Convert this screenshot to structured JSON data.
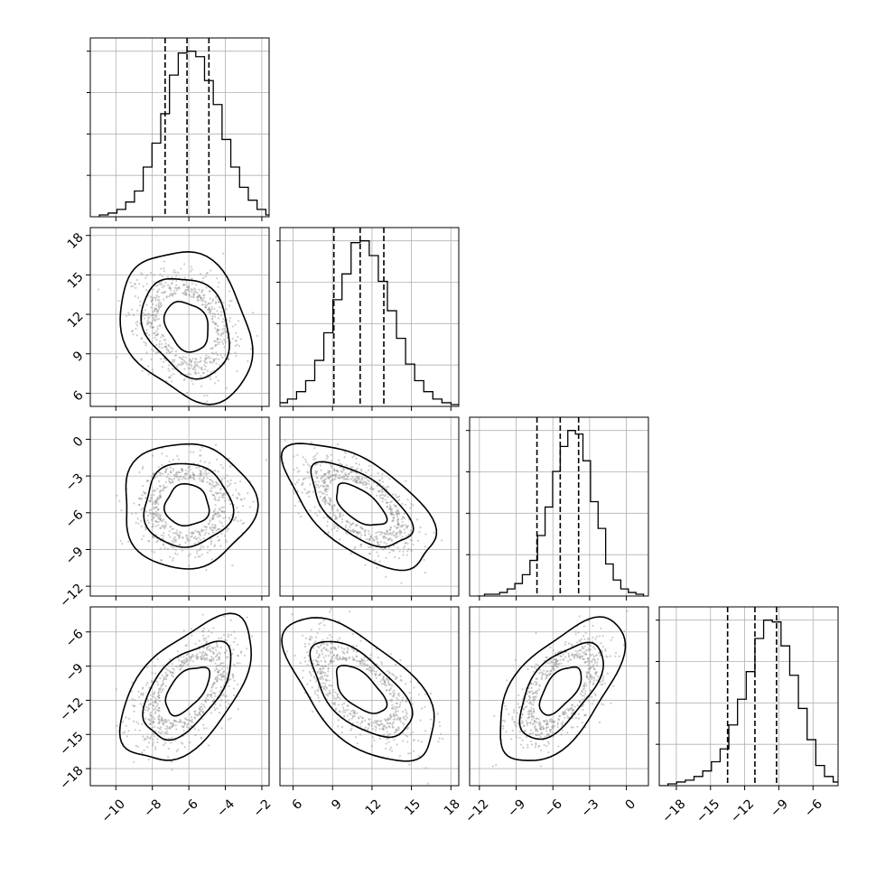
{
  "chart_data": {
    "type": "corner",
    "grid": true,
    "parameters": [
      {
        "median": -6.1,
        "q16": -7.3,
        "q84": -4.9,
        "std": 1.2,
        "tick_values": [
          -10,
          -8,
          -6,
          -4,
          -2
        ],
        "tick_labels": [
          "−10",
          "−8",
          "−6",
          "−4",
          "−2"
        ],
        "range": [
          -11.4,
          -1.6
        ]
      },
      {
        "median": 11.1,
        "q16": 9.1,
        "q84": 12.9,
        "std": 1.9,
        "tick_values": [
          6,
          9,
          12,
          15,
          18
        ],
        "tick_labels": [
          "6",
          "9",
          "12",
          "15",
          "18"
        ],
        "range": [
          5.0,
          18.6
        ]
      },
      {
        "median": -5.4,
        "q16": -7.3,
        "q84": -3.9,
        "std": 1.7,
        "tick_values": [
          -12,
          -9,
          -6,
          -3,
          0
        ],
        "tick_labels": [
          "−12",
          "−9",
          "−6",
          "−3",
          "0"
        ],
        "range": [
          -12.8,
          1.8
        ]
      },
      {
        "median": -11.1,
        "q16": -13.5,
        "q84": -9.2,
        "std": 2.1,
        "tick_values": [
          -18,
          -15,
          -12,
          -9,
          -6
        ],
        "tick_labels": [
          "−18",
          "−15",
          "−12",
          "−9",
          "−6"
        ],
        "range": [
          -19.5,
          -3.8
        ]
      }
    ],
    "correlations": [
      [
        1.0,
        -0.25,
        0.0,
        0.55
      ],
      [
        -0.25,
        1.0,
        -0.6,
        -0.6
      ],
      [
        0.0,
        -0.6,
        1.0,
        0.6
      ],
      [
        0.55,
        -0.6,
        0.6,
        1.0
      ]
    ],
    "histograms": [
      [
        1,
        2,
        4,
        8,
        14,
        27,
        40,
        56,
        77,
        89,
        90,
        87,
        74,
        61,
        42,
        27,
        16,
        9,
        4,
        1
      ],
      [
        0,
        1,
        2,
        4,
        8,
        14,
        25,
        40,
        58,
        72,
        89,
        90,
        82,
        68,
        52,
        37,
        23,
        14,
        8,
        4,
        2,
        1
      ],
      [
        0,
        1,
        1,
        2,
        4,
        7,
        12,
        20,
        34,
        50,
        70,
        84,
        93,
        91,
        76,
        53,
        38,
        18,
        9,
        4,
        2,
        1
      ],
      [
        0,
        1,
        2,
        3,
        5,
        8,
        13,
        20,
        33,
        47,
        62,
        80,
        90,
        89,
        76,
        60,
        42,
        25,
        11,
        5,
        2,
        1
      ]
    ],
    "contour_levels": [
      "39.3%",
      "86.5%",
      "98.9%"
    ],
    "colors": {
      "line": "#000000",
      "grid": "#b0b0b0",
      "points": "#8f8f8f"
    }
  }
}
